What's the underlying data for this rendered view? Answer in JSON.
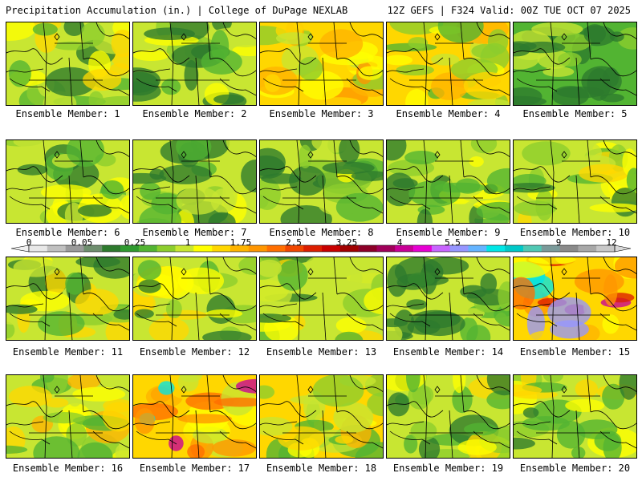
{
  "header": {
    "title_left": "Precipitation Accumulation (in.) | College of DuPage NEXLAB",
    "title_right": "12Z GEFS | F324 Valid: 00Z TUE OCT 07 2025"
  },
  "panels": [
    {
      "label": "Ensemble Member: 1",
      "intensity": 0.4
    },
    {
      "label": "Ensemble Member: 2",
      "intensity": 0.3
    },
    {
      "label": "Ensemble Member: 3",
      "intensity": 0.6
    },
    {
      "label": "Ensemble Member: 4",
      "intensity": 0.55
    },
    {
      "label": "Ensemble Member: 5",
      "intensity": 0.15
    },
    {
      "label": "Ensemble Member: 6",
      "intensity": 0.3
    },
    {
      "label": "Ensemble Member: 7",
      "intensity": 0.3
    },
    {
      "label": "Ensemble Member: 8",
      "intensity": 0.25
    },
    {
      "label": "Ensemble Member: 9",
      "intensity": 0.3
    },
    {
      "label": "Ensemble Member: 10",
      "intensity": 0.35
    },
    {
      "label": "Ensemble Member: 11",
      "intensity": 0.35
    },
    {
      "label": "Ensemble Member: 12",
      "intensity": 0.35
    },
    {
      "label": "Ensemble Member: 13",
      "intensity": 0.35
    },
    {
      "label": "Ensemble Member: 14",
      "intensity": 0.2
    },
    {
      "label": "Ensemble Member: 15",
      "intensity": 0.8
    },
    {
      "label": "Ensemble Member: 16",
      "intensity": 0.45
    },
    {
      "label": "Ensemble Member: 17",
      "intensity": 0.75
    },
    {
      "label": "Ensemble Member: 18",
      "intensity": 0.55
    },
    {
      "label": "Ensemble Member: 19",
      "intensity": 0.35
    },
    {
      "label": "Ensemble Member: 20",
      "intensity": 0.4
    }
  ],
  "colorbar": {
    "tick_labels": [
      "0",
      "0.05",
      "0.25",
      "1",
      "1.75",
      "2.5",
      "3.25",
      "4",
      "5.5",
      "7",
      "9",
      "12"
    ],
    "colors": [
      "#e8e8e8",
      "#c0c0c0",
      "#9a9a9a",
      "#6e8e6e",
      "#2d7a2d",
      "#2f9a2f",
      "#52b432",
      "#8ccd2d",
      "#c8e632",
      "#ffff00",
      "#ffd700",
      "#ffb400",
      "#ff9600",
      "#ff6e00",
      "#f04600",
      "#dc1e00",
      "#c80000",
      "#a00000",
      "#8c0028",
      "#a0005a",
      "#c80096",
      "#e600d2",
      "#c864ff",
      "#9696ff",
      "#64b4ff",
      "#00e6e6",
      "#00c8c8",
      "#50c8b4",
      "#7a9a9a",
      "#8a8a8a",
      "#a8a8a8",
      "#c8c8c8"
    ]
  }
}
